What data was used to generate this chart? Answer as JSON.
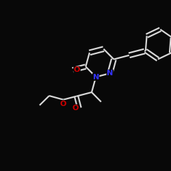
{
  "bg_color": "#080808",
  "bond_color": "#d8d8d8",
  "atom_colors": {
    "N": "#3333ff",
    "O": "#cc0000"
  },
  "bond_width": 1.6,
  "figsize": [
    2.5,
    2.5
  ],
  "dpi": 100,
  "xlim": [
    -1.4,
    1.4
  ],
  "ylim": [
    -1.4,
    1.4
  ]
}
